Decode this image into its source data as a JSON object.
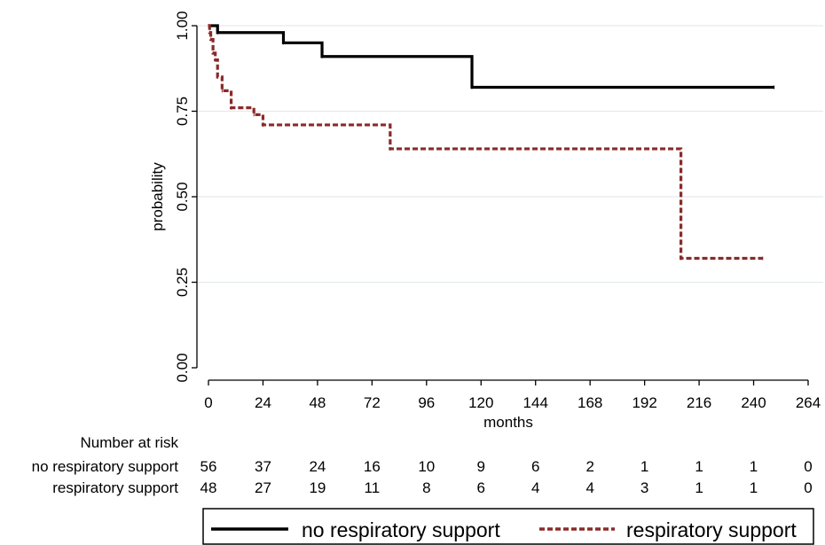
{
  "chart_data": {
    "type": "line",
    "subtype": "kaplan-meier step",
    "title": "",
    "xlabel": "months",
    "ylabel": "probability",
    "xlim": [
      0,
      264
    ],
    "ylim": [
      0,
      1
    ],
    "x_ticks": [
      0,
      24,
      48,
      72,
      96,
      120,
      144,
      168,
      192,
      216,
      240,
      264
    ],
    "y_ticks": [
      0.0,
      0.25,
      0.5,
      0.75,
      1.0
    ],
    "x_tick_labels": [
      "0",
      "24",
      "48",
      "72",
      "96",
      "120",
      "144",
      "168",
      "192",
      "216",
      "240",
      "264"
    ],
    "y_tick_labels": [
      "0.00",
      "0.25",
      "0.50",
      "0.75",
      "1.00"
    ],
    "grid": "horizontal",
    "legend": {
      "placement": "bottom",
      "entries": [
        "no respiratory support",
        "respiratory support"
      ]
    },
    "series": [
      {
        "name": "no respiratory support",
        "color": "#000000",
        "style": "solid",
        "x": [
          0,
          4,
          33,
          50,
          116,
          249
        ],
        "y": [
          1.0,
          0.98,
          0.95,
          0.91,
          0.82,
          0.82
        ]
      },
      {
        "name": "respiratory support",
        "color": "#8b2a2a",
        "style": "dashed",
        "x": [
          0,
          0.5,
          1,
          2,
          3,
          4,
          6,
          10,
          20,
          24,
          80,
          208,
          244
        ],
        "y": [
          1.0,
          0.98,
          0.96,
          0.92,
          0.9,
          0.85,
          0.81,
          0.76,
          0.74,
          0.71,
          0.64,
          0.32,
          0.32
        ]
      }
    ],
    "risk_table": {
      "header": "Number at risk",
      "times": [
        0,
        24,
        48,
        72,
        96,
        120,
        144,
        168,
        192,
        216,
        240,
        264
      ],
      "rows": [
        {
          "label": "no respiratory support",
          "values": [
            "56",
            "37",
            "24",
            "16",
            "10",
            "9",
            "6",
            "2",
            "1",
            "1",
            "1",
            "0"
          ]
        },
        {
          "label": "respiratory support",
          "values": [
            "48",
            "27",
            "19",
            "11",
            "8",
            "6",
            "4",
            "4",
            "3",
            "1",
            "1",
            "0"
          ]
        }
      ]
    }
  }
}
